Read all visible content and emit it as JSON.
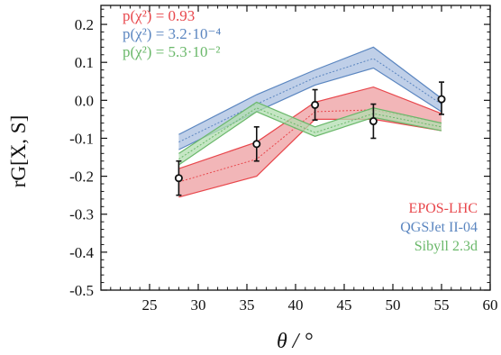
{
  "chart_data": {
    "type": "line",
    "xlabel": "θ / °",
    "ylabel": "rG[X, S]",
    "xlim": [
      20,
      60
    ],
    "ylim": [
      -0.5,
      0.25
    ],
    "x_ticks": [
      "25",
      "30",
      "35",
      "40",
      "45",
      "50",
      "55",
      "60"
    ],
    "x_tick_values": [
      25,
      30,
      35,
      40,
      45,
      50,
      55,
      60
    ],
    "y_ticks": [
      "0.2",
      "0.1",
      "0.0",
      "-0.1",
      "-0.2",
      "-0.3",
      "-0.4",
      "-0.5"
    ],
    "y_tick_values": [
      0.2,
      0.1,
      0.0,
      -0.1,
      -0.2,
      -0.3,
      -0.4,
      -0.5
    ],
    "p_values": [
      {
        "text": "p(χ²) = 0.93",
        "color": "#e8474c"
      },
      {
        "text": "p(χ²) = 3.2·10⁻⁴",
        "color": "#5b86c0"
      },
      {
        "text": "p(χ²) = 5.3·10⁻²",
        "color": "#6ab86a"
      }
    ],
    "series": [
      {
        "name": "EPOS-LHC",
        "color": "#e8474c",
        "fill": "#ee9ea0",
        "x": [
          28,
          36,
          42,
          48,
          55
        ],
        "center": [
          -0.215,
          -0.155,
          -0.03,
          -0.025,
          -0.06
        ],
        "lower": [
          -0.255,
          -0.2,
          -0.05,
          -0.05,
          -0.08
        ],
        "upper": [
          -0.18,
          -0.11,
          -0.005,
          0.035,
          -0.035
        ]
      },
      {
        "name": "QGSJet II-04",
        "color": "#5b86c0",
        "fill": "#a9bfe0",
        "x": [
          28,
          36,
          42,
          48,
          55
        ],
        "center": [
          -0.11,
          -0.01,
          0.06,
          0.11,
          -0.01
        ],
        "lower": [
          -0.13,
          -0.03,
          0.04,
          0.085,
          -0.03
        ],
        "upper": [
          -0.09,
          0.015,
          0.08,
          0.14,
          0.005
        ]
      },
      {
        "name": "Sibyll 2.3d",
        "color": "#6ab86a",
        "fill": "#b2deb0",
        "x": [
          28,
          36,
          42,
          48,
          55
        ],
        "center": [
          -0.155,
          -0.02,
          -0.085,
          -0.035,
          -0.07
        ],
        "lower": [
          -0.17,
          -0.03,
          -0.095,
          -0.045,
          -0.08
        ],
        "upper": [
          -0.14,
          -0.005,
          -0.07,
          -0.02,
          -0.06
        ]
      }
    ],
    "data_points": {
      "x": [
        28,
        36,
        42,
        48,
        55
      ],
      "y": [
        -0.205,
        -0.115,
        -0.012,
        -0.055,
        0.003
      ],
      "err_low": [
        0.045,
        0.045,
        0.04,
        0.045,
        0.04
      ],
      "err_high": [
        0.045,
        0.045,
        0.04,
        0.045,
        0.045
      ]
    },
    "legend_position": "bottom-right",
    "grid": false
  }
}
